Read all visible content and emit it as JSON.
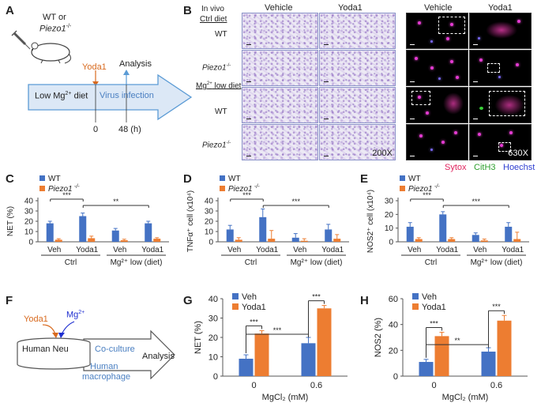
{
  "panel_labels": {
    "a": "A",
    "b": "B",
    "c": "C",
    "d": "D",
    "e": "E",
    "f": "F",
    "g": "G",
    "h": "H"
  },
  "panel_a": {
    "genotype_line1": "WT or",
    "genotype_line2": "Piezo1",
    "genotype_sup": "-/-",
    "treatment": "Yoda1",
    "analysis": "Analysis",
    "diet": "Low Mg",
    "diet_sup": "2+",
    "diet_suffix": " diet",
    "infection": "Virus infection",
    "t0": "0",
    "t48": "48 (h)"
  },
  "panel_b": {
    "in_vivo": "In vivo",
    "ctrl_diet": "Ctrl diet",
    "mg_diet": "Mg",
    "mg_diet_sup": "2+",
    "mg_diet_suffix": " low diet",
    "row_wt": "WT",
    "row_piezo": "Piezo1",
    "row_piezo_sup": "-/-",
    "col_vehicle": "Vehicle",
    "col_yoda1": "Yoda1",
    "mag_histo": "200X",
    "mag_fluor": "630X",
    "legend_sytox": "Sytox",
    "legend_cith3": "CitH3",
    "legend_hoechst": "Hoechst",
    "colors": {
      "sytox": "#e0245e",
      "cith3": "#2ea02e",
      "hoechst": "#2f3fd0"
    }
  },
  "chart_data": [
    {
      "id": "C",
      "type": "bar",
      "ylabel": "NET (%)",
      "ylim": [
        0,
        40
      ],
      "yticks": [
        "0",
        "10",
        "20",
        "30",
        "40"
      ],
      "categories": [
        "Veh",
        "Yoda1",
        "Veh",
        "Yoda1"
      ],
      "groups": [
        "Ctrl",
        "Mg²⁺ low (diet)"
      ],
      "legend": [
        "WT",
        "Piezo1-/-"
      ],
      "series": [
        {
          "name": "WT",
          "color": "#4472c4",
          "values": [
            18,
            25,
            11,
            18
          ],
          "errors": [
            2,
            3,
            2,
            2
          ]
        },
        {
          "name": "Piezo1-/-",
          "color": "#ed7d31",
          "values": [
            2,
            3.5,
            1.5,
            3
          ],
          "errors": [
            1,
            2,
            1,
            1
          ]
        }
      ],
      "significance": [
        {
          "from": 0,
          "to": 1,
          "label": "***"
        },
        {
          "from": 1,
          "to": 3,
          "label": "**"
        }
      ]
    },
    {
      "id": "D",
      "type": "bar",
      "ylabel": "TNFα⁺ cell (x10⁴)",
      "ylim": [
        0,
        40
      ],
      "yticks": [
        "0",
        "10",
        "20",
        "30",
        "40"
      ],
      "categories": [
        "Veh",
        "Yoda1",
        "Veh",
        "Yoda1"
      ],
      "groups": [
        "Ctrl",
        "Mg²⁺ low (diet)"
      ],
      "legend": [
        "WT",
        "Piezo1-/-"
      ],
      "series": [
        {
          "name": "WT",
          "color": "#4472c4",
          "values": [
            12,
            24,
            4,
            12
          ],
          "errors": [
            4,
            8,
            4,
            5
          ]
        },
        {
          "name": "Piezo1-/-",
          "color": "#ed7d31",
          "values": [
            2,
            3,
            1,
            3
          ],
          "errors": [
            2,
            8,
            2,
            4
          ]
        }
      ],
      "significance": [
        {
          "from": 0,
          "to": 1,
          "label": "***"
        },
        {
          "from": 1,
          "to": 3,
          "label": "***"
        }
      ]
    },
    {
      "id": "E",
      "type": "bar",
      "ylabel": "NOS2⁺ cell (x10⁴)",
      "ylim": [
        0,
        30
      ],
      "yticks": [
        "0",
        "10",
        "20",
        "30"
      ],
      "categories": [
        "Veh",
        "Yoda1",
        "Veh",
        "Yoda1"
      ],
      "groups": [
        "Ctrl",
        "Mg²⁺ low (diet)"
      ],
      "legend": [
        "WT",
        "Piezo1-/-"
      ],
      "series": [
        {
          "name": "WT",
          "color": "#4472c4",
          "values": [
            11,
            20,
            5,
            11
          ],
          "errors": [
            3,
            2,
            1.5,
            3
          ]
        },
        {
          "name": "Piezo1-/-",
          "color": "#ed7d31",
          "values": [
            2,
            2,
            1,
            2
          ],
          "errors": [
            1,
            1,
            1,
            5
          ]
        }
      ],
      "significance": [
        {
          "from": 0,
          "to": 1,
          "label": "***"
        },
        {
          "from": 1,
          "to": 3,
          "label": "***"
        }
      ]
    },
    {
      "id": "G",
      "type": "bar",
      "ylabel": "NET (%)",
      "ylim": [
        0,
        40
      ],
      "yticks": [
        "0",
        "10",
        "20",
        "30",
        "40"
      ],
      "categories": [
        "0",
        "0.6"
      ],
      "xlabel": "MgCl₂ (mM)",
      "legend": [
        "Veh",
        "Yoda1"
      ],
      "series": [
        {
          "name": "Veh",
          "color": "#4472c4",
          "values": [
            9,
            17
          ],
          "errors": [
            2,
            3
          ]
        },
        {
          "name": "Yoda1",
          "color": "#ed7d31",
          "values": [
            22,
            35
          ],
          "errors": [
            1.5,
            1.5
          ]
        }
      ],
      "significance": [
        {
          "kind": "within",
          "cat": 0,
          "label": "***"
        },
        {
          "kind": "within",
          "cat": 1,
          "label": "***"
        },
        {
          "kind": "between",
          "label": "***"
        }
      ]
    },
    {
      "id": "H",
      "type": "bar",
      "ylabel": "NOS2 (%)",
      "ylim": [
        0,
        60
      ],
      "yticks": [
        "0",
        "20",
        "40",
        "60"
      ],
      "categories": [
        "0",
        "0.6"
      ],
      "xlabel": "MgCl₂ (mM)",
      "legend": [
        "Veh",
        "Yoda1"
      ],
      "series": [
        {
          "name": "Veh",
          "color": "#4472c4",
          "values": [
            11,
            19
          ],
          "errors": [
            2,
            3
          ]
        },
        {
          "name": "Yoda1",
          "color": "#ed7d31",
          "values": [
            31,
            43
          ],
          "errors": [
            3,
            4
          ]
        }
      ],
      "significance": [
        {
          "kind": "within",
          "cat": 0,
          "label": "***"
        },
        {
          "kind": "within",
          "cat": 1,
          "label": "***"
        },
        {
          "kind": "between",
          "label": "**"
        }
      ]
    }
  ],
  "panel_f": {
    "yoda1": "Yoda1",
    "mg": "Mg",
    "mg_sup": "2+",
    "cell": "Human Neu",
    "coculture": "Co-culture",
    "macrophage_line1": "Human",
    "macrophage_line2": "macrophage",
    "analysis": "Analysis"
  }
}
